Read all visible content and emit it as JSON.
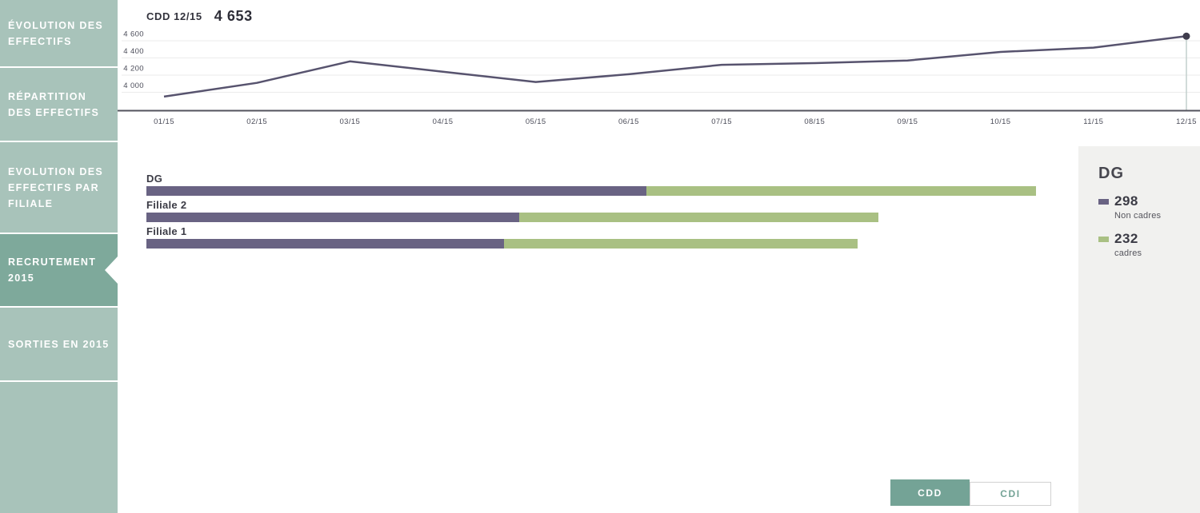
{
  "sidebar": {
    "items": [
      {
        "id": "evolution-des-effectifs",
        "label": "ÉVOLUTION DES\nEFFECTIFS",
        "active": false,
        "height": 83
      },
      {
        "id": "repartition-des-effectifs",
        "label": "RÉPARTITION\nDES EFFECTIFS",
        "active": false,
        "height": 91
      },
      {
        "id": "evolution-des-effectifs-par-filiale",
        "label": "EVOLUTION DES\nEFFECTIFS PAR\nFILIALE",
        "active": false,
        "height": 113
      },
      {
        "id": "recrutement-2015",
        "label": "RECRUTEMENT\n2015",
        "active": true,
        "height": 90
      },
      {
        "id": "sorties-en-2015",
        "label": "SORTIES EN 2015",
        "active": false,
        "height": 91
      },
      {
        "id": "filler",
        "label": "",
        "active": false,
        "height": 164
      }
    ]
  },
  "line_chart": {
    "title_label": "CDD 12/15",
    "title_value": "4 653"
  },
  "chart_data": [
    {
      "type": "line",
      "title": "CDD 12/15 4 653",
      "x": [
        "01/15",
        "02/15",
        "03/15",
        "04/15",
        "05/15",
        "06/15",
        "07/15",
        "08/15",
        "09/15",
        "10/15",
        "11/15",
        "12/15"
      ],
      "values": [
        3950,
        4110,
        4360,
        4240,
        4120,
        4210,
        4320,
        4340,
        4370,
        4470,
        4520,
        4653
      ],
      "yticks": [
        4600,
        4400,
        4200,
        4000
      ],
      "ytick_labels": [
        "4 600",
        "4 400",
        "4 200",
        "4 000"
      ],
      "ylim": [
        3780,
        4720
      ],
      "grid": true,
      "line_color": "#57536e",
      "marker_on_last_point": true,
      "legend_position": "none"
    },
    {
      "type": "bar",
      "orientation": "horizontal",
      "stacked": true,
      "categories": [
        "DG",
        "Filiale 2",
        "Filiale 1"
      ],
      "series": [
        {
          "name": "Non cadres",
          "color": "#696383",
          "values": [
            298,
            222,
            213
          ]
        },
        {
          "name": "cadres",
          "color": "#a9c083",
          "values": [
            232,
            214,
            211
          ]
        }
      ],
      "value_labels_shown_in_panel_for": "DG"
    }
  ],
  "side_panel": {
    "title": "DG",
    "items": [
      {
        "value": "298",
        "label": "Non cadres",
        "color": "#696383"
      },
      {
        "value": "232",
        "label": "cadres",
        "color": "#a9c083"
      }
    ]
  },
  "toggle": {
    "options": [
      {
        "label": "CDD",
        "active": true
      },
      {
        "label": "CDI",
        "active": false
      }
    ]
  },
  "colors": {
    "sidebar_inactive": "#a8c3ba",
    "sidebar_active": "#7ea99b",
    "purple": "#696383",
    "green": "#a9c083",
    "line": "#57536e",
    "panel_bg": "#f1f1ef",
    "toggle_active": "#74a396",
    "axis": "#53535c",
    "grid": "#ebebeb",
    "text_dark": "#32323c",
    "text_muted": "#4b4c59"
  }
}
